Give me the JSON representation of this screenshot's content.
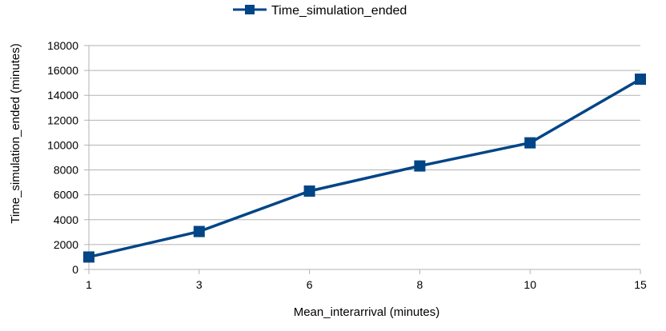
{
  "chart_data": {
    "type": "line",
    "categories": [
      "1",
      "3",
      "6",
      "8",
      "10",
      "15"
    ],
    "series": [
      {
        "name": "Time_simulation_ended",
        "values": [
          1000,
          3050,
          6300,
          8320,
          10180,
          15300
        ],
        "color": "#004586"
      }
    ],
    "xlabel": "Mean_interarrival (minutes)",
    "ylabel": "Time_simulation_ended (minutes)",
    "ylim": [
      0,
      18000
    ],
    "yticks": [
      0,
      2000,
      4000,
      6000,
      8000,
      10000,
      12000,
      14000,
      16000,
      18000
    ],
    "grid": true,
    "legend_position": "top-center",
    "marker": "square"
  }
}
